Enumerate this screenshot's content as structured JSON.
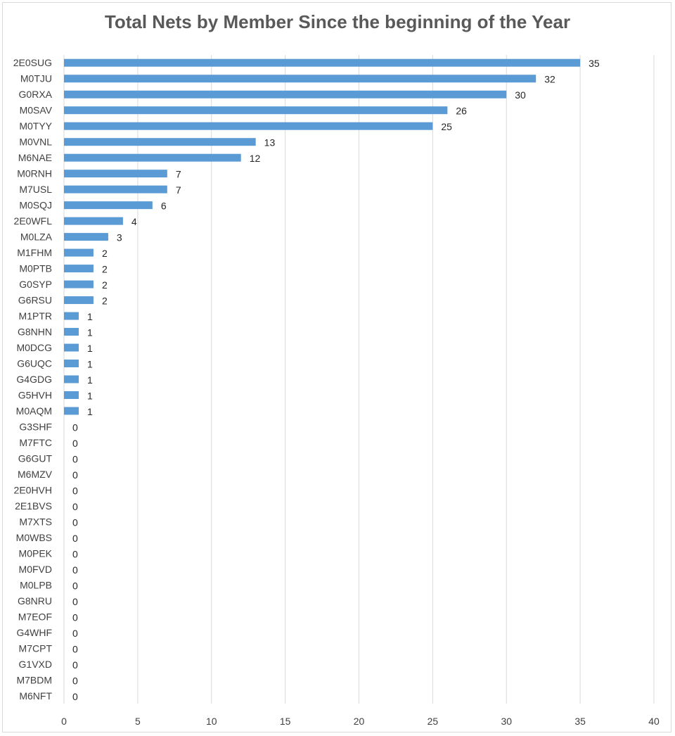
{
  "chart_data": {
    "type": "bar",
    "orientation": "horizontal",
    "title": "Total Nets by Member Since the beginning of the Year",
    "xlabel": "",
    "ylabel": "",
    "xlim": [
      0,
      40
    ],
    "x_ticks": [
      0,
      5,
      10,
      15,
      20,
      25,
      30,
      35,
      40
    ],
    "grid": "vertical",
    "legend": "none",
    "bar_color": "#5b9bd5",
    "data_labels": true,
    "categories": [
      "2E0SUG",
      "M0TJU",
      "G0RXA",
      "M0SAV",
      "M0TYY",
      "M0VNL",
      "M6NAE",
      "M0RNH",
      "M7USL",
      "M0SQJ",
      "2E0WFL",
      "M0LZA",
      "M1FHM",
      "M0PTB",
      "G0SYP",
      "G6RSU",
      "M1PTR",
      "G8NHN",
      "M0DCG",
      "G6UQC",
      "G4GDG",
      "G5HVH",
      "M0AQM",
      "G3SHF",
      "M7FTC",
      "G6GUT",
      "M6MZV",
      "2E0HVH",
      "2E1BVS",
      "M7XTS",
      "M0WBS",
      "M0PEK",
      "M0FVD",
      "M0LPB",
      "G8NRU",
      "M7EOF",
      "G4WHF",
      "M7CPT",
      "G1VXD",
      "M7BDM",
      "M6NFT"
    ],
    "values": [
      35,
      32,
      30,
      26,
      25,
      13,
      12,
      7,
      7,
      6,
      4,
      3,
      2,
      2,
      2,
      2,
      1,
      1,
      1,
      1,
      1,
      1,
      1,
      0,
      0,
      0,
      0,
      0,
      0,
      0,
      0,
      0,
      0,
      0,
      0,
      0,
      0,
      0,
      0,
      0,
      0
    ]
  }
}
